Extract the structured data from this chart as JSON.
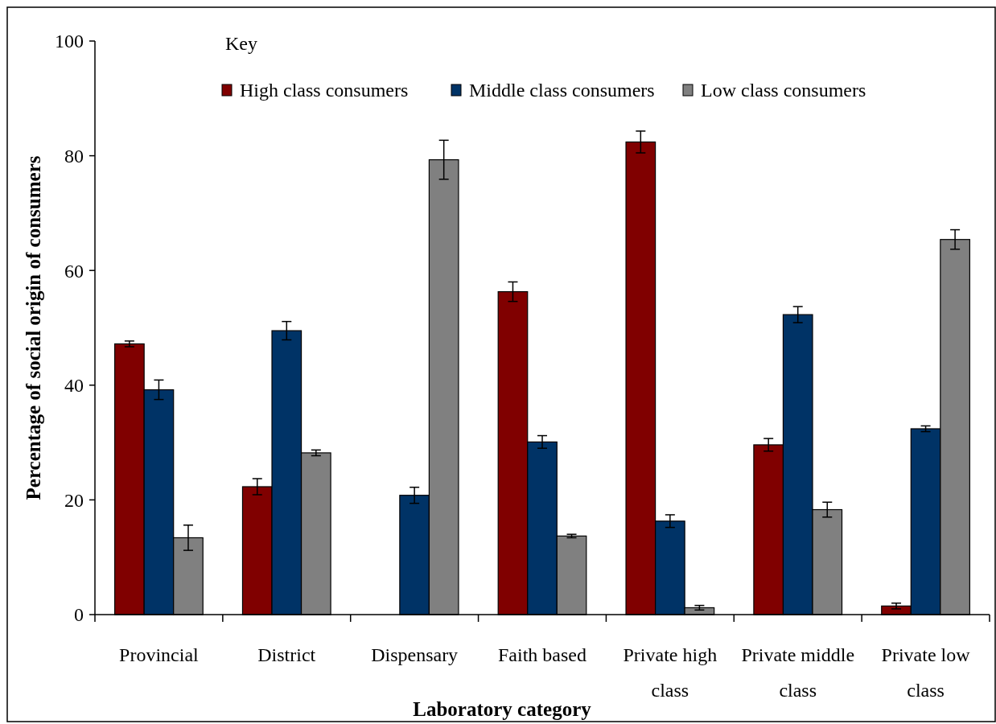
{
  "chart_data": {
    "type": "bar",
    "xlabel": "Laboratory category",
    "ylabel": "Percentage of social origin of consumers",
    "legend_title": "Key",
    "legend": "top",
    "grid": false,
    "categories": [
      "Provincial",
      "District",
      "Dispensary",
      "Faith based",
      "Private high class",
      "Private middle class",
      "Private low class"
    ],
    "ylim": [
      0,
      100
    ],
    "yticks": [
      0,
      20,
      40,
      60,
      80,
      100
    ],
    "series": [
      {
        "name": "High class consumers",
        "color": "#800000",
        "values": [
          47.2,
          22.3,
          0,
          56.3,
          82.4,
          29.6,
          1.5
        ],
        "errors": [
          0.5,
          1.4,
          null,
          1.7,
          1.9,
          1.1,
          0.5
        ]
      },
      {
        "name": "Middle class consumers",
        "color": "#003366",
        "values": [
          39.2,
          49.5,
          20.8,
          30.1,
          16.3,
          52.3,
          32.4
        ],
        "errors": [
          1.7,
          1.6,
          1.4,
          1.1,
          1.1,
          1.4,
          0.5
        ]
      },
      {
        "name": "Low class consumers",
        "color": "#808080",
        "values": [
          13.4,
          28.2,
          79.3,
          13.7,
          1.2,
          18.3,
          65.4
        ],
        "errors": [
          2.2,
          0.5,
          3.4,
          0.3,
          0.4,
          1.3,
          1.7
        ]
      }
    ]
  }
}
